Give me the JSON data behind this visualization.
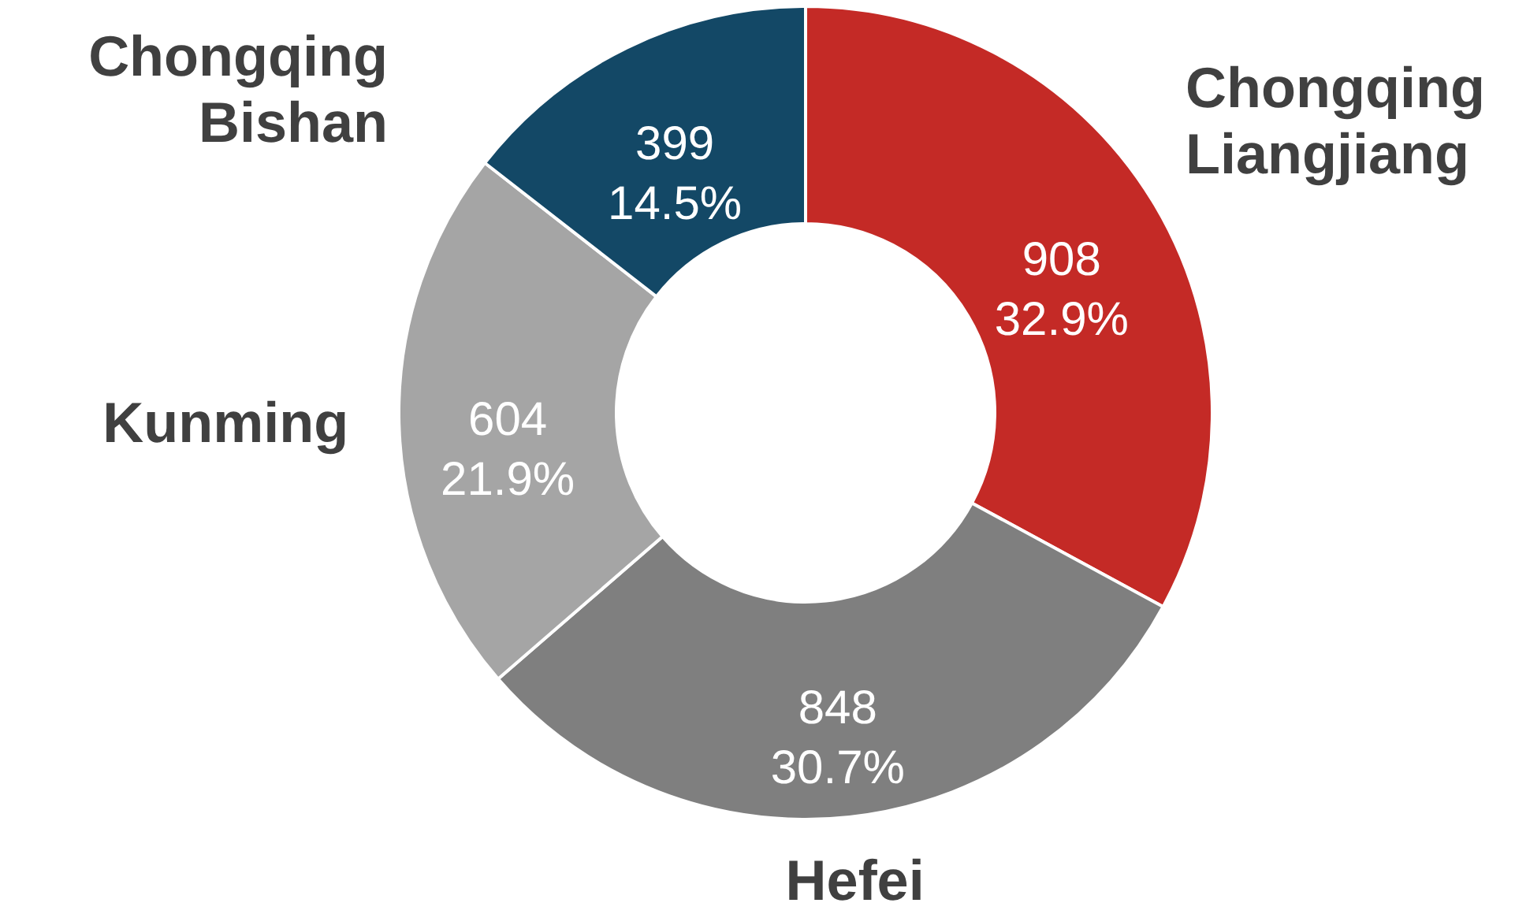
{
  "chart_data": {
    "type": "donut",
    "categories": [
      "Chongqing Liangjiang",
      "Hefei",
      "Kunming",
      "Chongqing Bishan"
    ],
    "values": [
      908,
      848,
      604,
      399
    ],
    "colors": [
      "#c42a26",
      "#7f7f7f",
      "#a5a5a5",
      "#134866"
    ],
    "value_labels": [
      "908\n32.9%",
      "848\n30.7%",
      "604\n21.9%",
      "399\n14.5%"
    ]
  }
}
